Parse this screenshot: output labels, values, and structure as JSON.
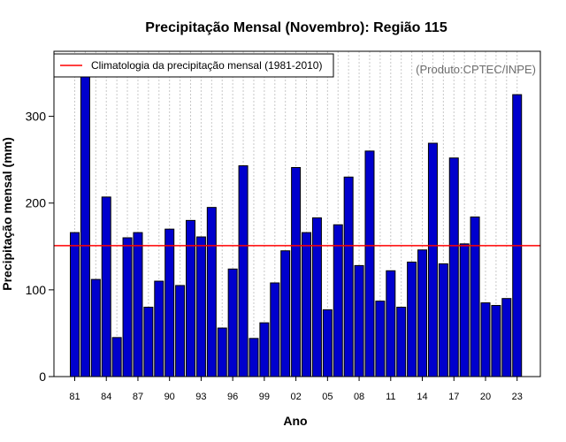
{
  "chart_data": {
    "type": "bar",
    "title": "Precipitação Mensal (Novembro): Região 115",
    "xlabel": "Ano",
    "ylabel": "Precipitação mensal (mm)",
    "source_note": "(Produto:CPTEC/INPE)",
    "legend": {
      "label": "Climatologia da precipitação mensal (1981-2010)",
      "placement": "top-left"
    },
    "reference_line": {
      "name": "Climatologia da precipitação mensal (1981-2010)",
      "value": 151
    },
    "ylim": [
      0,
      375
    ],
    "yticks": [
      0,
      100,
      200,
      300
    ],
    "xtick_labels": [
      "81",
      "84",
      "87",
      "90",
      "93",
      "96",
      "99",
      "02",
      "05",
      "08",
      "11",
      "14",
      "17",
      "20",
      "23"
    ],
    "categories": [
      "1981",
      "1982",
      "1983",
      "1984",
      "1985",
      "1986",
      "1987",
      "1988",
      "1989",
      "1990",
      "1991",
      "1992",
      "1993",
      "1994",
      "1995",
      "1996",
      "1997",
      "1998",
      "1999",
      "2000",
      "2001",
      "2002",
      "2003",
      "2004",
      "2005",
      "2006",
      "2007",
      "2008",
      "2009",
      "2010",
      "2011",
      "2012",
      "2013",
      "2014",
      "2015",
      "2016",
      "2017",
      "2018",
      "2019",
      "2020",
      "2021",
      "2022",
      "2023"
    ],
    "values": [
      166,
      349,
      112,
      207,
      45,
      160,
      166,
      80,
      110,
      170,
      105,
      180,
      161,
      195,
      56,
      124,
      243,
      44,
      62,
      108,
      145,
      241,
      166,
      183,
      77,
      175,
      230,
      128,
      260,
      87,
      122,
      80,
      132,
      146,
      269,
      130,
      252,
      153,
      184,
      85,
      82,
      90,
      325
    ],
    "colors": {
      "bar": "#0000cd",
      "bar_edge": "#000000",
      "reference_line": "#ff0000",
      "grid": "#c8c8c8"
    }
  }
}
